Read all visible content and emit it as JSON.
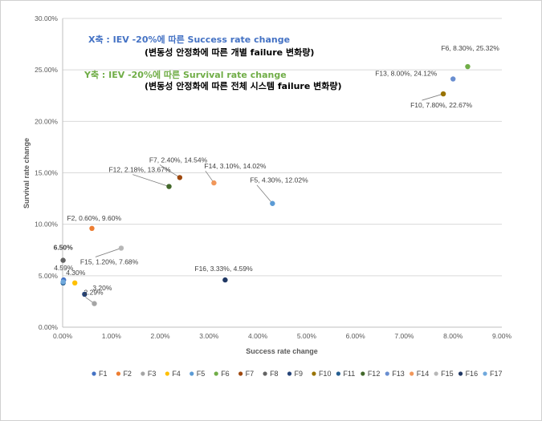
{
  "chart_data": {
    "type": "scatter",
    "xlabel": "Success rate change",
    "ylabel": "Survival rate change",
    "xlim": [
      0,
      9
    ],
    "ylim": [
      0,
      30
    ],
    "x_ticks": [
      "0.00%",
      "1.00%",
      "2.00%",
      "3.00%",
      "4.00%",
      "5.00%",
      "6.00%",
      "7.00%",
      "8.00%",
      "9.00%"
    ],
    "y_ticks": [
      "0.00%",
      "5.00%",
      "10.00%",
      "15.00%",
      "20.00%",
      "25.00%",
      "30.00%"
    ],
    "grid": "horizontal",
    "legend_position": "bottom",
    "annotations": [
      {
        "text": "X축 : IEV -20%에 따른 Success rate change",
        "color": "#4472C4"
      },
      {
        "text": "(변동성 안정화에 따른 개별 failure 변화량)",
        "color": "#000000"
      },
      {
        "text": "Y축 : IEV -20%에 따른 Survival rate change",
        "color": "#70AD47"
      },
      {
        "text": "(변동성 안정화에 따른 전체 시스템 failure 변화량)",
        "color": "#000000"
      }
    ],
    "series": [
      {
        "name": "F1",
        "x": 0.02,
        "y": 4.59,
        "color": "#4472C4",
        "label": "4.59%"
      },
      {
        "name": "F2",
        "x": 0.6,
        "y": 9.6,
        "color": "#ED7D31",
        "label": "F2, 0.60%, 9.60%"
      },
      {
        "name": "F3",
        "x": 0.65,
        "y": 2.29,
        "color": "#A5A5A5",
        "label": "2.29%"
      },
      {
        "name": "F4",
        "x": 0.25,
        "y": 4.3,
        "color": "#FFC000",
        "label": "4.30%"
      },
      {
        "name": "F5",
        "x": 4.3,
        "y": 12.02,
        "color": "#5B9BD5",
        "label": "F5, 4.30%, 12.02%"
      },
      {
        "name": "F6",
        "x": 8.3,
        "y": 25.32,
        "color": "#70AD47",
        "label": "F6, 8.30%, 25.32%"
      },
      {
        "name": "F7",
        "x": 2.4,
        "y": 14.54,
        "color": "#9E480E",
        "label": "F7, 2.40%, 14.54%"
      },
      {
        "name": "F8",
        "x": 0.01,
        "y": 6.5,
        "color": "#636363",
        "label": "6.50%"
      },
      {
        "name": "F9",
        "x": 0.45,
        "y": 3.2,
        "color": "#264478",
        "label": "3.20%"
      },
      {
        "name": "F10",
        "x": 7.8,
        "y": 22.67,
        "color": "#997300",
        "label": "F10, 7.80%, 22.67%"
      },
      {
        "name": "F11",
        "x": 0.01,
        "y": 4.3,
        "color": "#255E91",
        "label": ""
      },
      {
        "name": "F12",
        "x": 2.18,
        "y": 13.67,
        "color": "#43682B",
        "label": "F12, 2.18%, 13.67%"
      },
      {
        "name": "F13",
        "x": 8.0,
        "y": 24.12,
        "color": "#698ED0",
        "label": "F13, 8.00%, 24.12%"
      },
      {
        "name": "F14",
        "x": 3.1,
        "y": 14.02,
        "color": "#F1975A",
        "label": "F14, 3.10%, 14.02%"
      },
      {
        "name": "F15",
        "x": 1.2,
        "y": 7.68,
        "color": "#B7B7B7",
        "label": "F15, 1.20%, 7.68%"
      },
      {
        "name": "F16",
        "x": 3.33,
        "y": 4.59,
        "color": "#203864",
        "label": "F16, 3.33%, 4.59%"
      },
      {
        "name": "F17",
        "x": 0.01,
        "y": 4.4,
        "color": "#6FA8DC",
        "label": ""
      }
    ]
  }
}
